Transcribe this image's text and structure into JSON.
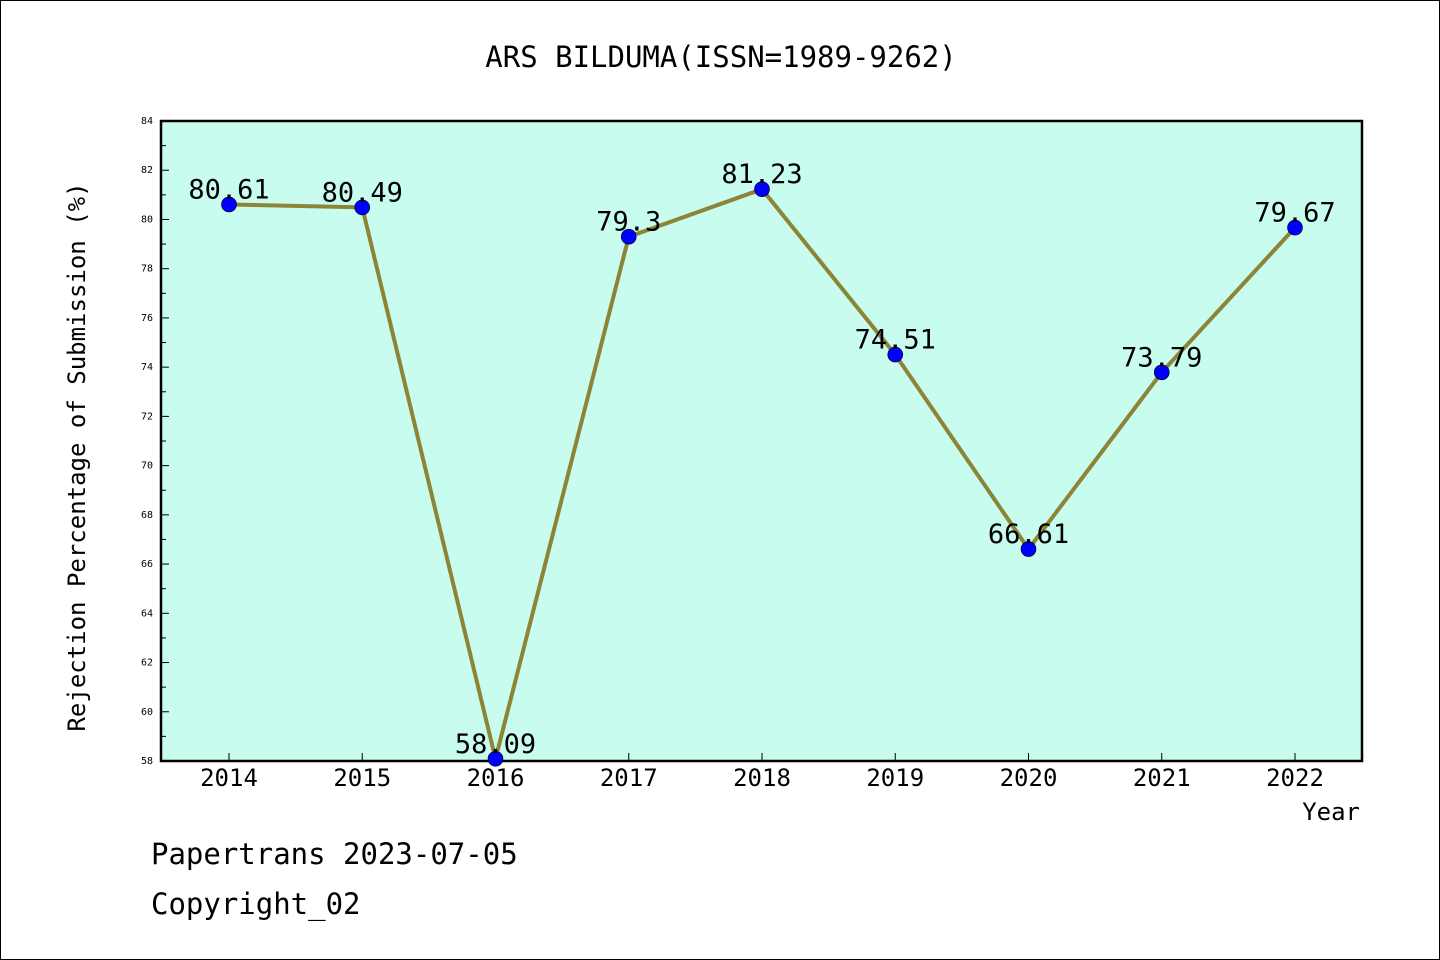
{
  "chart_data": {
    "type": "line",
    "title": "ARS BILDUMA(ISSN=1989-9262)",
    "xlabel": "Year",
    "ylabel": "Rejection Percentage of Submission (%)",
    "categories": [
      "2014",
      "2015",
      "2016",
      "2017",
      "2018",
      "2019",
      "2020",
      "2021",
      "2022"
    ],
    "values": [
      80.61,
      80.49,
      58.09,
      79.3,
      81.23,
      74.51,
      66.61,
      73.79,
      79.67
    ],
    "data_labels": [
      "80.61",
      "80.49",
      "58.09",
      "79.3",
      "81.23",
      "74.51",
      "66.61",
      "73.79",
      "79.67"
    ],
    "ylim": [
      58,
      84
    ],
    "yticks": [
      "58",
      "60",
      "62",
      "64",
      "66",
      "68",
      "70",
      "72",
      "74",
      "76",
      "78",
      "80",
      "82",
      "84"
    ],
    "grid": false,
    "colors": {
      "plot_background": "#c8fcee",
      "line": "#8c8436",
      "marker": "#0000ff"
    }
  },
  "footer": {
    "line1": "Papertrans 2023-07-05",
    "line2": "Copyright_02"
  }
}
